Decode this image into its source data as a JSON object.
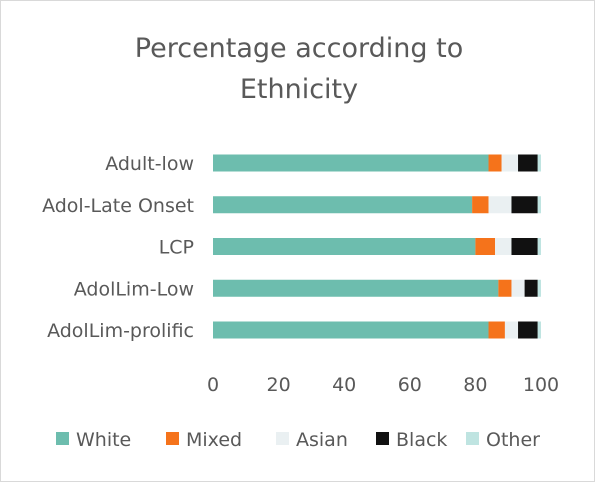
{
  "chart_data": {
    "type": "bar",
    "orientation": "horizontal",
    "stacked": true,
    "title_lines": [
      "Percentage according to",
      "Ethnicity"
    ],
    "categories": [
      "Adult-low",
      "Adol-Late Onset",
      "LCP",
      "AdolLim-Low",
      "AdolLim-prolific"
    ],
    "series": [
      {
        "name": "White",
        "color": "#6dbdae",
        "values": [
          84,
          79,
          80,
          87,
          84
        ]
      },
      {
        "name": "Mixed",
        "color": "#f5731b",
        "values": [
          4,
          5,
          6,
          4,
          5
        ]
      },
      {
        "name": "Asian",
        "color": "#eaf0f2",
        "values": [
          5,
          7,
          5,
          4,
          4
        ]
      },
      {
        "name": "Black",
        "color": "#111111",
        "values": [
          6,
          8,
          8,
          4,
          6
        ]
      },
      {
        "name": "Other",
        "color": "#bfe4e1",
        "values": [
          1,
          1,
          1,
          1,
          1
        ]
      }
    ],
    "xlim": [
      0,
      100
    ],
    "xticks": [
      0,
      20,
      40,
      60,
      80,
      100
    ],
    "grid": false,
    "legend_position": "bottom"
  }
}
